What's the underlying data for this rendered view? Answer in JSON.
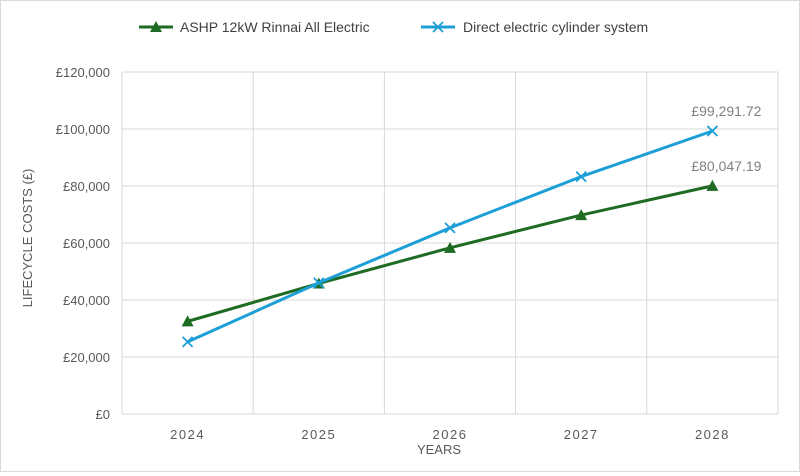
{
  "chart_data": {
    "type": "line",
    "title": "",
    "xlabel": "YEARS",
    "ylabel": "LIFECYCLE COSTS (£)",
    "categories": [
      "2024",
      "2025",
      "2026",
      "2027",
      "2028"
    ],
    "ylim": [
      0,
      120000
    ],
    "yticks": [
      0,
      20000,
      40000,
      60000,
      80000,
      100000,
      120000
    ],
    "ytick_labels": [
      "£0",
      "£20,000",
      "£40,000",
      "£60,000",
      "£80,000",
      "£100,000",
      "£120,000"
    ],
    "grid": true,
    "legend": "top",
    "series": [
      {
        "name": "ASHP 12kW Rinnai All Electric",
        "color": "#1e6b23",
        "marker": "triangle",
        "values": [
          32500,
          45800,
          58300,
          69800,
          80047.19
        ],
        "end_label": "£80,047.19"
      },
      {
        "name": "Direct electric cylinder system",
        "color": "#1c9fd6",
        "marker": "x",
        "values": [
          25300,
          46000,
          65300,
          83300,
          99291.72
        ],
        "end_label": "£99,291.72"
      }
    ]
  }
}
